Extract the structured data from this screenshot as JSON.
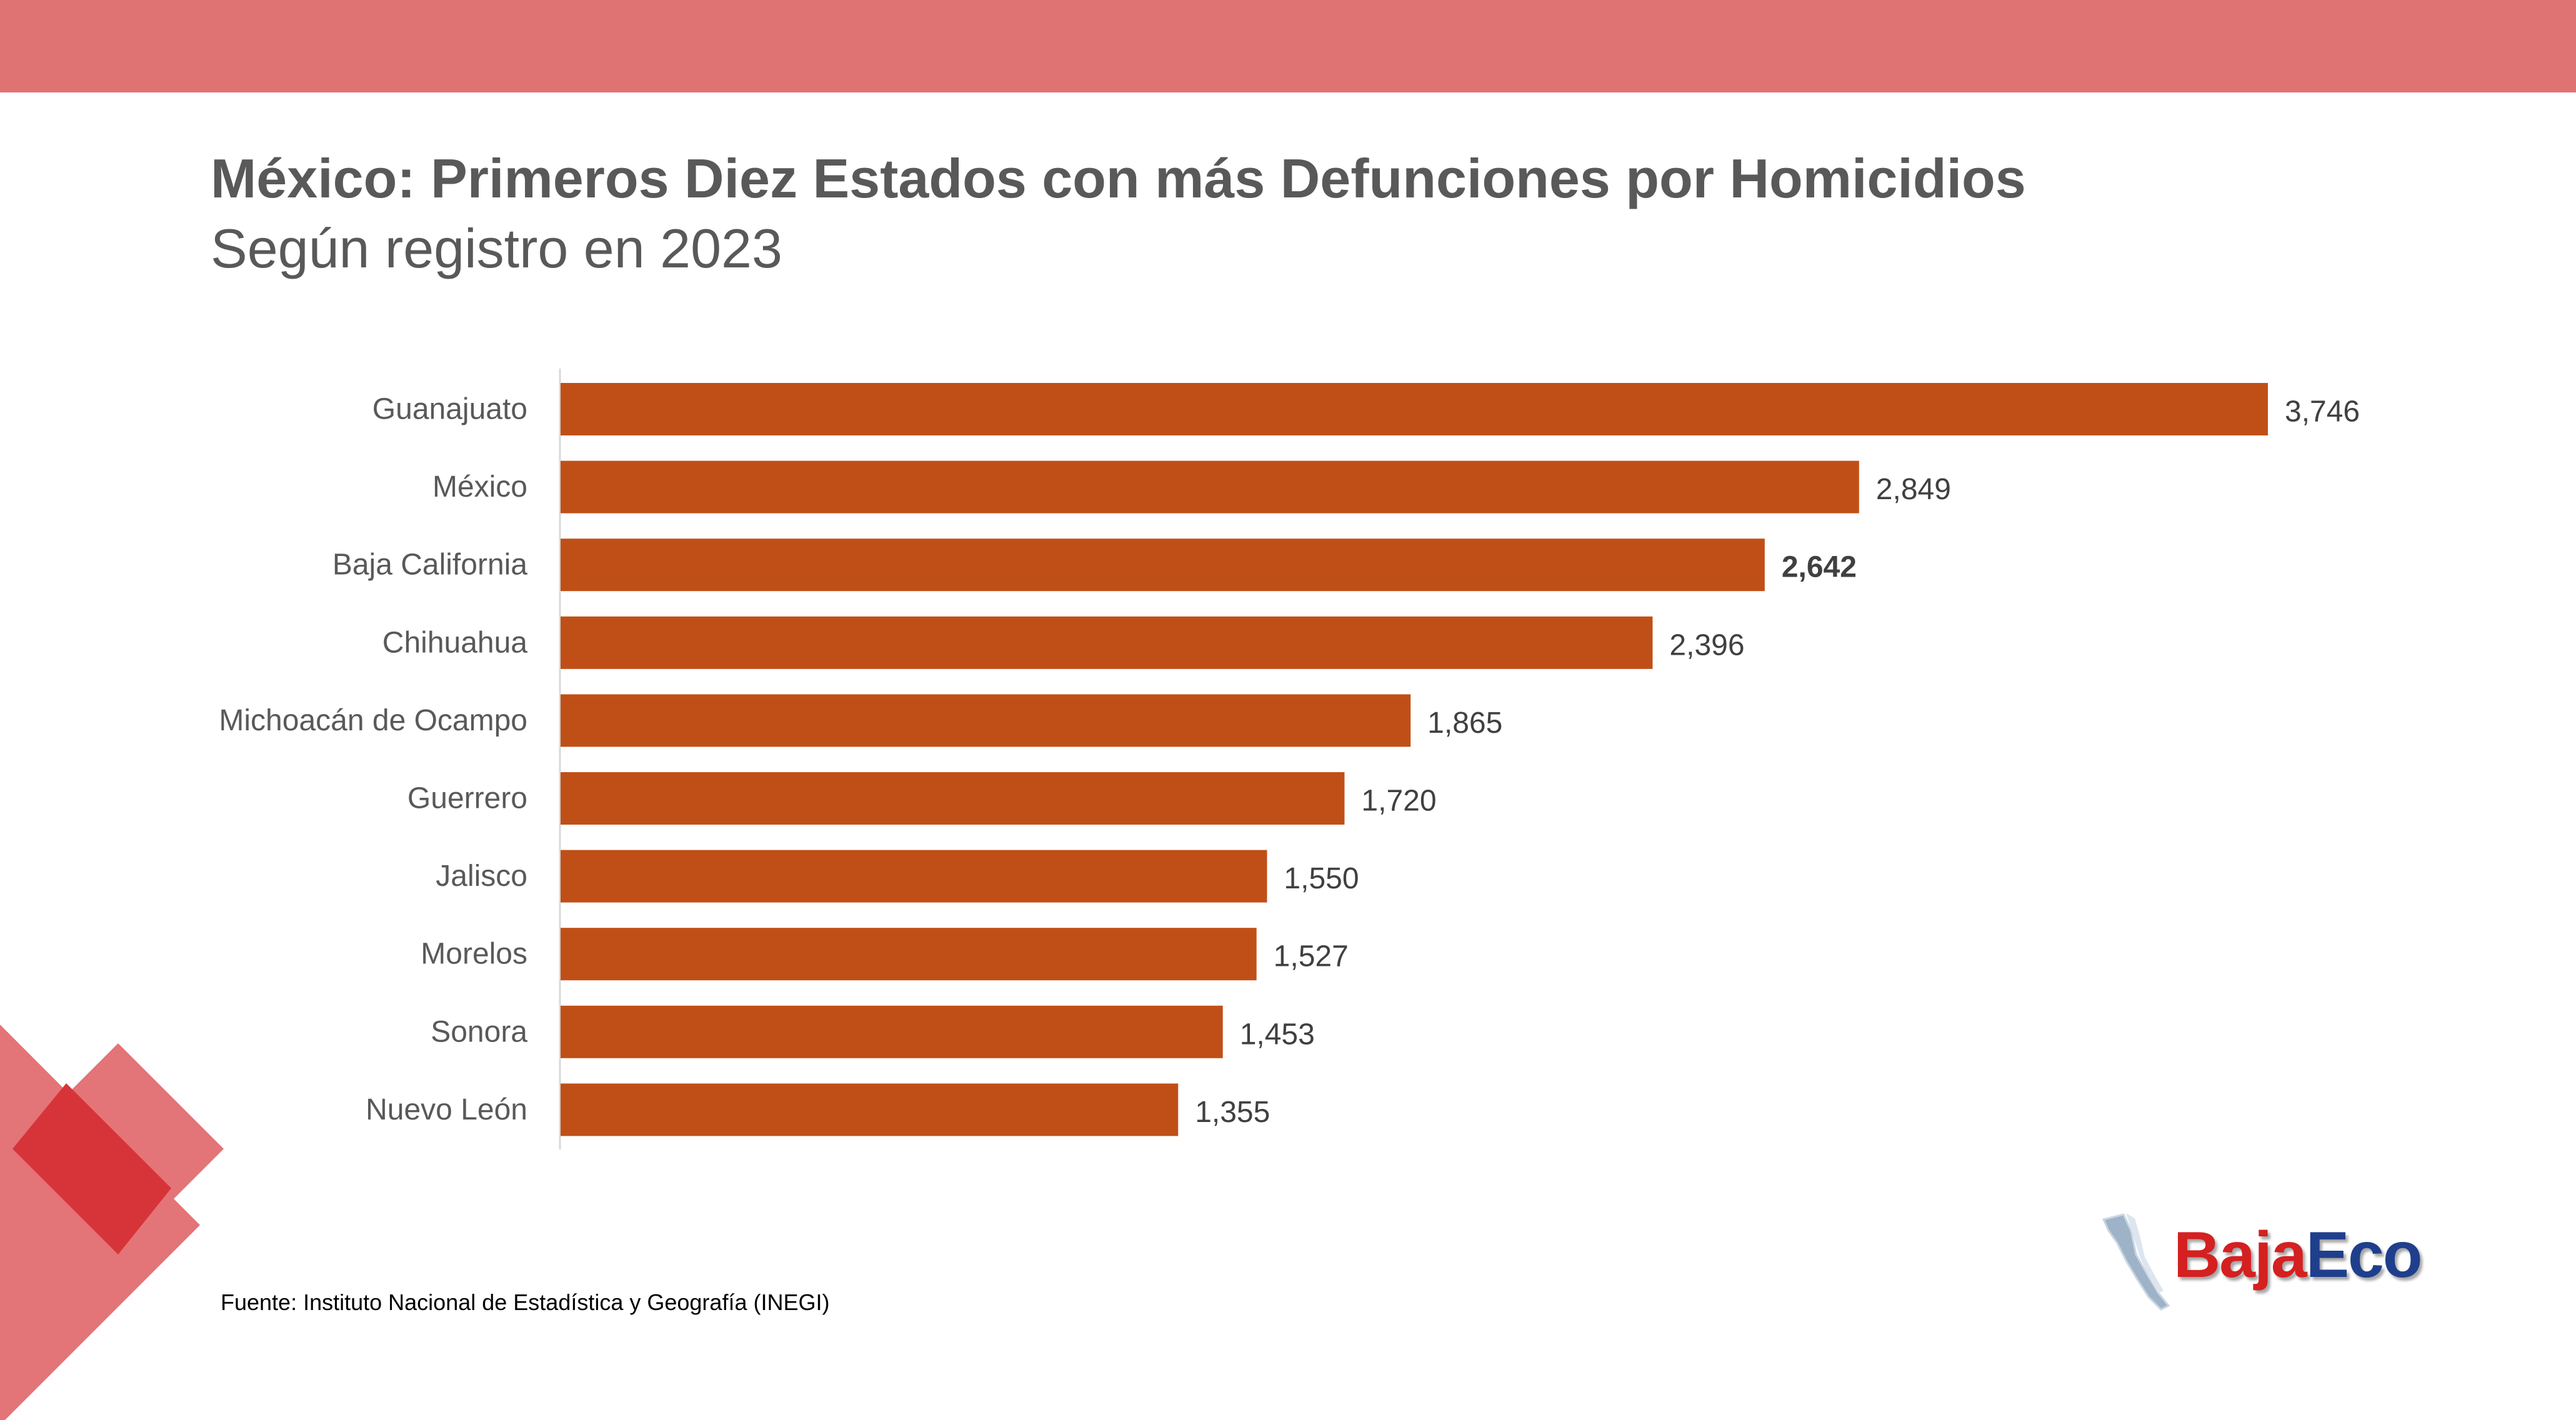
{
  "colors": {
    "top_band": "#df7373",
    "bar": "#c04f17",
    "text_gray": "#595959",
    "deco_light": "#e37478",
    "deco_dark": "#d63438",
    "logo_red": "#d42020",
    "logo_blue": "#1f3f8c"
  },
  "header": {
    "title": "México: Primeros Diez Estados con más Defunciones por Homicidios",
    "subtitle": "Según registro en 2023"
  },
  "chart_data": {
    "type": "bar",
    "orientation": "horizontal",
    "title": "México: Primeros Diez Estados con más Defunciones por Homicidios",
    "subtitle": "Según registro en 2023",
    "categories": [
      "Guanajuato",
      "México",
      "Baja California",
      "Chihuahua",
      "Michoacán de Ocampo",
      "Guerrero",
      "Jalisco",
      "Morelos",
      "Sonora",
      "Nuevo León"
    ],
    "values": [
      3746,
      2849,
      2642,
      2396,
      1865,
      1720,
      1550,
      1527,
      1453,
      1355
    ],
    "value_labels": [
      "3,746",
      "2,849",
      "2,642",
      "2,396",
      "1,865",
      "1,720",
      "1,550",
      "1,527",
      "1,453",
      "1,355"
    ],
    "highlighted_label": "Baja California",
    "xlim": [
      0,
      3746
    ],
    "grid": false,
    "xlabel": "",
    "ylabel": ""
  },
  "footer": {
    "source": "Fuente: Instituto Nacional de Estadística y Geografía (INEGI)"
  },
  "logo": {
    "icon": "baja-california-map-icon",
    "text_part_a": "Baja",
    "text_part_b": "Eco"
  }
}
